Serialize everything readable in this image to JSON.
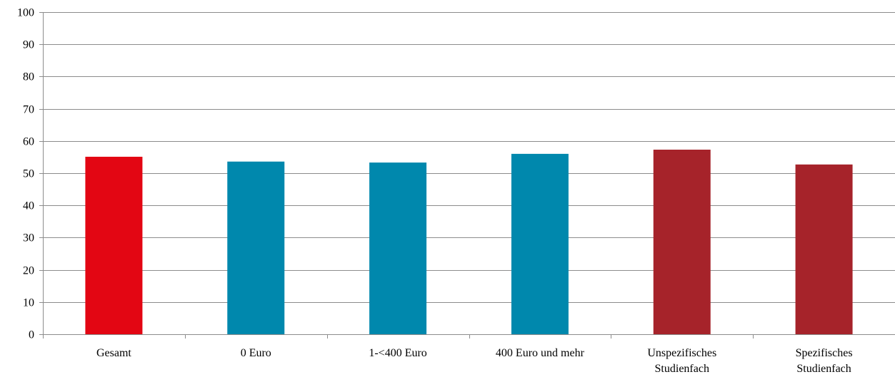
{
  "chart_data": {
    "type": "bar",
    "categories": [
      [
        "Gesamt"
      ],
      [
        "0 Euro"
      ],
      [
        "1-<400 Euro"
      ],
      [
        "400 Euro und mehr"
      ],
      [
        "Unspezifisches",
        "Studienfach"
      ],
      [
        "Spezifisches",
        "Studienfach"
      ]
    ],
    "values": [
      55.1,
      53.6,
      53.3,
      56.0,
      57.3,
      52.7
    ],
    "bar_colors": [
      "#e30613",
      "#0088ad",
      "#0088ad",
      "#0088ad",
      "#a6232a",
      "#a6232a"
    ],
    "title": "",
    "xlabel": "",
    "ylabel": "",
    "ylim": [
      0,
      100
    ],
    "yticks": [
      0,
      10,
      20,
      30,
      40,
      50,
      60,
      70,
      80,
      90,
      100
    ],
    "grid": true,
    "legend": "none"
  }
}
